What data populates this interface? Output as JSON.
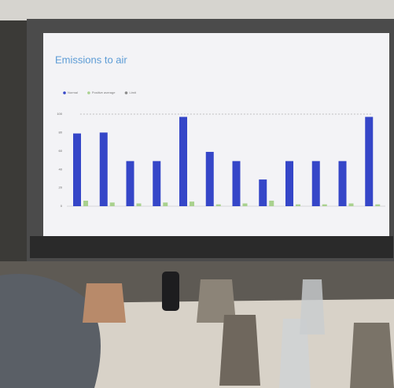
{
  "chart_data": {
    "type": "bar",
    "title": "Emissions to air",
    "categories": [
      null,
      null,
      null,
      null,
      null,
      null,
      null,
      null,
      null,
      null,
      null,
      null
    ],
    "series": [
      {
        "name": "Normal",
        "color": "#3546c8",
        "values": [
          79,
          80,
          49,
          49,
          97,
          59,
          49,
          29,
          49,
          49,
          49,
          97
        ]
      },
      {
        "name": "Positive average",
        "color": "#a9d18e",
        "values": [
          6,
          4,
          3,
          4,
          5,
          2,
          3,
          6,
          2,
          2,
          3,
          2
        ]
      },
      {
        "name": "Limit",
        "color": "#8a8a8a",
        "values": [
          100,
          100,
          100,
          100,
          100,
          100,
          100,
          100,
          100,
          100,
          100,
          100
        ]
      }
    ],
    "ylim": [
      0,
      100
    ],
    "yticks": [
      0,
      20,
      40,
      60,
      80,
      100
    ],
    "grid": false
  }
}
